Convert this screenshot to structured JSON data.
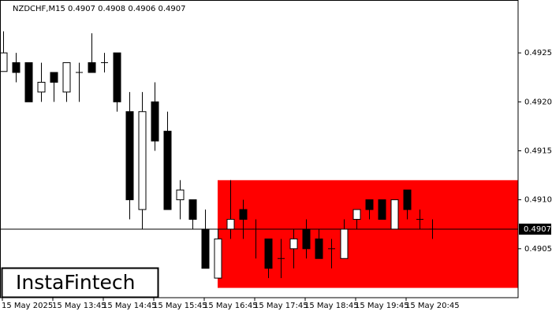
{
  "chart_data": {
    "type": "candlestick",
    "title": "NZDCHF,M15  0.4907 0.4908 0.4906 0.4907",
    "watermark": "InstaFintech",
    "categories": [
      "15 May 2025",
      null,
      null,
      null,
      "15 May 13:45",
      null,
      null,
      null,
      "15 May 14:45",
      null,
      null,
      null,
      "15 May 15:45",
      null,
      null,
      null,
      "15 May 16:45",
      null,
      null,
      null,
      "15 May 17:45",
      null,
      null,
      null,
      "15 May 18:45",
      null,
      null,
      null,
      "15 May 19:45",
      null,
      null,
      null,
      "15 May 20:45",
      null,
      null
    ],
    "open": [
      0.49231,
      0.4924,
      0.4924,
      0.4921,
      0.4923,
      0.4921,
      0.4923,
      0.4924,
      0.4924,
      0.4925,
      0.4919,
      0.4909,
      0.492,
      0.4917,
      0.491,
      0.491,
      0.4907,
      0.4902,
      0.4907,
      0.4909,
      0.4907,
      0.4906,
      0.4904,
      0.4905,
      0.4907,
      0.4906,
      0.4905,
      0.4904,
      0.4908,
      0.491,
      0.491,
      0.4907,
      0.4911,
      0.4908,
      0.4907
    ],
    "high": [
      0.49272,
      0.4925,
      0.4924,
      0.4924,
      0.4923,
      0.4924,
      0.4924,
      0.4927,
      0.4925,
      0.4925,
      0.4921,
      0.4921,
      0.4922,
      0.4919,
      0.4912,
      0.491,
      0.4909,
      0.4907,
      0.4912,
      0.491,
      0.4908,
      0.4906,
      0.4906,
      0.4907,
      0.4908,
      0.4907,
      0.4906,
      0.4908,
      0.4909,
      0.491,
      0.491,
      0.491,
      0.4911,
      0.4909,
      0.4908
    ],
    "low": [
      0.49231,
      0.4922,
      0.492,
      0.492,
      0.492,
      0.492,
      0.492,
      0.4923,
      0.4923,
      0.4919,
      0.4908,
      0.4907,
      0.4915,
      0.4909,
      0.4908,
      0.4907,
      0.4903,
      0.4902,
      0.4906,
      0.4906,
      0.4904,
      0.4902,
      0.4902,
      0.4903,
      0.4904,
      0.4904,
      0.4903,
      0.4904,
      0.4907,
      0.4908,
      0.4908,
      0.4907,
      0.4908,
      0.4907,
      0.4906
    ],
    "close": [
      0.4925,
      0.4923,
      0.492,
      0.4922,
      0.4922,
      0.4924,
      0.4923,
      0.4923,
      0.4924,
      0.492,
      0.491,
      0.4919,
      0.4916,
      0.4909,
      0.4911,
      0.4908,
      0.4903,
      0.4906,
      0.4908,
      0.4908,
      0.4907,
      0.4903,
      0.4904,
      0.4906,
      0.4905,
      0.4904,
      0.4905,
      0.4907,
      0.4909,
      0.4909,
      0.4908,
      0.491,
      0.4909,
      0.4908,
      0.4907
    ],
    "up_color": "#ffffff",
    "down_color": "#000000",
    "ylim": [
      0.49,
      0.49304
    ],
    "yticks": [
      0.4905,
      {
        "value": 0.491,
        "label": "0.4910"
      },
      0.4915,
      {
        "value": 0.492,
        "label": "0.4920"
      },
      0.4925
    ],
    "last_price": 0.4907,
    "zone": {
      "start": 17,
      "top": 0.4912,
      "bottom": 0.4901,
      "color": "#ff0000"
    }
  }
}
